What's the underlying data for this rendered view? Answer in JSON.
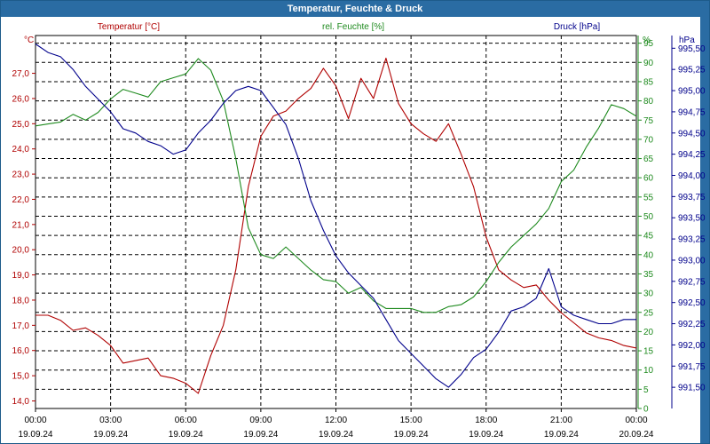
{
  "window": {
    "title": "Temperatur, Feuchte & Druck"
  },
  "colors": {
    "temperature": "#b00000",
    "humidity": "#1e8a1e",
    "pressure": "#00008b",
    "title_bar": "#2a6ca3"
  },
  "chart_data": {
    "type": "line",
    "title": "Temperatur, Feuchte & Druck",
    "grid": true,
    "x_axis": {
      "ticks": [
        {
          "time": "00:00",
          "date": "19.09.24"
        },
        {
          "time": "03:00",
          "date": "19.09.24"
        },
        {
          "time": "06:00",
          "date": "19.09.24"
        },
        {
          "time": "09:00",
          "date": "19.09.24"
        },
        {
          "time": "12:00",
          "date": "19.09.24"
        },
        {
          "time": "15:00",
          "date": "19.09.24"
        },
        {
          "time": "18:00",
          "date": "19.09.24"
        },
        {
          "time": "21:00",
          "date": "19.09.24"
        },
        {
          "time": "00:00",
          "date": "20.09.24"
        }
      ]
    },
    "axes": {
      "temperature": {
        "label": "Temperatur [°C]",
        "unit": "°C",
        "range": [
          13.7,
          28.5
        ],
        "ticks": [
          "14,0",
          "15,0",
          "16,0",
          "17,0",
          "18,0",
          "19,0",
          "20,0",
          "21,0",
          "22,0",
          "23,0",
          "24,0",
          "25,0",
          "26,0",
          "27,0"
        ]
      },
      "humidity": {
        "label": "rel. Feuchte [%]",
        "unit": "%",
        "range": [
          0,
          97
        ],
        "ticks": [
          "0",
          "5",
          "10",
          "15",
          "20",
          "25",
          "30",
          "35",
          "40",
          "45",
          "50",
          "55",
          "60",
          "65",
          "70",
          "75",
          "80",
          "85",
          "90",
          "95"
        ]
      },
      "pressure": {
        "label": "Druck [hPa]",
        "unit": "hPa",
        "range": [
          991.25,
          995.65
        ],
        "ticks": [
          "991,50",
          "991,75",
          "992,00",
          "992,25",
          "992,50",
          "992,75",
          "993,00",
          "993,25",
          "993,50",
          "993,75",
          "994,00",
          "994,25",
          "994,50",
          "994,75",
          "995,00",
          "995,25",
          "995,50"
        ]
      }
    },
    "series": [
      {
        "name": "Temperatur [°C]",
        "axis": "temperature",
        "x_hours": [
          0,
          0.5,
          1,
          1.5,
          2,
          2.5,
          3,
          3.5,
          4,
          4.5,
          5,
          5.5,
          6,
          6.5,
          7,
          7.5,
          8,
          8.5,
          9,
          9.5,
          10,
          10.5,
          11,
          11.5,
          12,
          12.5,
          13,
          13.5,
          14,
          14.5,
          15,
          15.5,
          16,
          16.5,
          17,
          17.5,
          18,
          18.5,
          19,
          19.5,
          20,
          20.5,
          21,
          21.5,
          22,
          22.5,
          23,
          23.5,
          24
        ],
        "values": [
          17.4,
          17.4,
          17.2,
          16.8,
          16.9,
          16.6,
          16.2,
          15.5,
          15.6,
          15.7,
          15.0,
          14.9,
          14.7,
          14.3,
          15.8,
          17.0,
          19.2,
          22.5,
          24.5,
          25.3,
          25.5,
          26.0,
          26.4,
          27.2,
          26.5,
          25.2,
          26.8,
          26.0,
          27.6,
          25.8,
          25.0,
          24.6,
          24.3,
          25.0,
          23.8,
          22.5,
          20.5,
          19.2,
          18.8,
          18.5,
          18.6,
          18.0,
          17.5,
          17.1,
          16.7,
          16.5,
          16.4,
          16.2,
          16.1
        ]
      },
      {
        "name": "rel. Feuchte [%]",
        "axis": "humidity",
        "x_hours": [
          0,
          0.5,
          1,
          1.5,
          2,
          2.5,
          3,
          3.5,
          4,
          4.5,
          5,
          5.5,
          6,
          6.5,
          7,
          7.5,
          8,
          8.5,
          9,
          9.5,
          10,
          10.5,
          11,
          11.5,
          12,
          12.5,
          13,
          13.5,
          14,
          14.5,
          15,
          15.5,
          16,
          16.5,
          17,
          17.5,
          18,
          18.5,
          19,
          19.5,
          20,
          20.5,
          21,
          21.5,
          22,
          22.5,
          23,
          23.5,
          24
        ],
        "values": [
          73.5,
          74,
          74.5,
          76.5,
          75,
          77,
          80.5,
          83,
          82,
          81,
          85,
          86,
          87,
          91,
          88,
          80,
          65,
          47,
          40,
          39,
          42,
          39,
          36,
          33.5,
          33,
          30,
          31.5,
          28,
          26,
          26,
          26,
          25,
          25,
          26.5,
          27,
          29,
          33,
          38,
          42,
          45,
          48,
          52,
          59,
          62,
          68,
          73,
          79,
          78,
          76
        ]
      },
      {
        "name": "Druck [hPa]",
        "axis": "pressure",
        "x_hours": [
          0,
          0.5,
          1,
          1.5,
          2,
          2.5,
          3,
          3.5,
          4,
          4.5,
          5,
          5.5,
          6,
          6.5,
          7,
          7.5,
          8,
          8.5,
          9,
          9.5,
          10,
          10.5,
          11,
          11.5,
          12,
          12.5,
          13,
          13.5,
          14,
          14.5,
          15,
          15.5,
          16,
          16.5,
          17,
          17.5,
          18,
          18.5,
          19,
          19.5,
          20,
          20.5,
          21,
          21.5,
          22,
          22.5,
          23,
          23.5,
          24
        ],
        "values": [
          995.55,
          995.45,
          995.4,
          995.25,
          995.05,
          994.9,
          994.75,
          994.55,
          994.5,
          994.4,
          994.35,
          994.25,
          994.3,
          994.5,
          994.65,
          994.85,
          995.0,
          995.05,
          995.0,
          994.8,
          994.6,
          994.2,
          993.7,
          993.35,
          993.05,
          992.85,
          992.7,
          992.55,
          992.3,
          992.05,
          991.9,
          991.75,
          991.6,
          991.5,
          991.65,
          991.85,
          991.95,
          992.15,
          992.4,
          992.45,
          992.55,
          992.9,
          992.45,
          992.35,
          992.3,
          992.25,
          992.25,
          992.3,
          992.3
        ]
      }
    ]
  }
}
